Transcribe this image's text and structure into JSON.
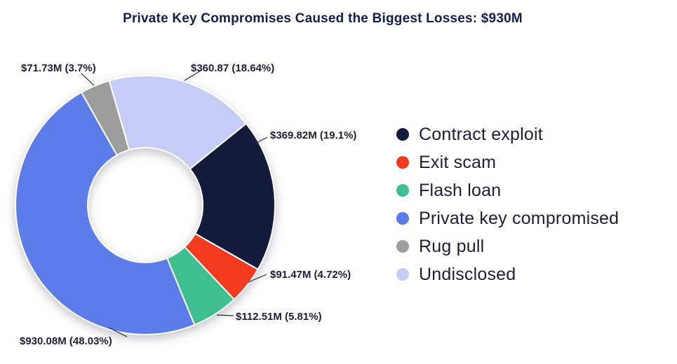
{
  "chart_data": {
    "type": "pie",
    "donut": true,
    "title": "Private Key Compromises Caused the Biggest Losses: $930M",
    "legend_position": "right",
    "start_angle_deg": 51,
    "slices": [
      {
        "name": "Contract exploit",
        "value": 369.82,
        "pct": 19.1,
        "value_label": "$369.82M (19.1%)",
        "color": "#131b3d"
      },
      {
        "name": "Exit scam",
        "value": 91.47,
        "pct": 4.72,
        "value_label": "$91.47M (4.72%)",
        "color": "#f43b1f"
      },
      {
        "name": "Flash loan",
        "value": 112.51,
        "pct": 5.81,
        "value_label": "$112.51M (5.81%)",
        "color": "#3fbe8f"
      },
      {
        "name": "Private key compromised",
        "value": 930.08,
        "pct": 48.03,
        "value_label": "$930.08M (48.03%)",
        "color": "#5b7ce9"
      },
      {
        "name": "Rug pull",
        "value": 71.73,
        "pct": 3.7,
        "value_label": "$71.73M (3.7%)",
        "color": "#9d9d9d"
      },
      {
        "name": "Undisclosed",
        "value": 360.87,
        "pct": 18.64,
        "value_label": "$360.87 (18.64%)",
        "color": "#c5cdf6"
      }
    ]
  }
}
